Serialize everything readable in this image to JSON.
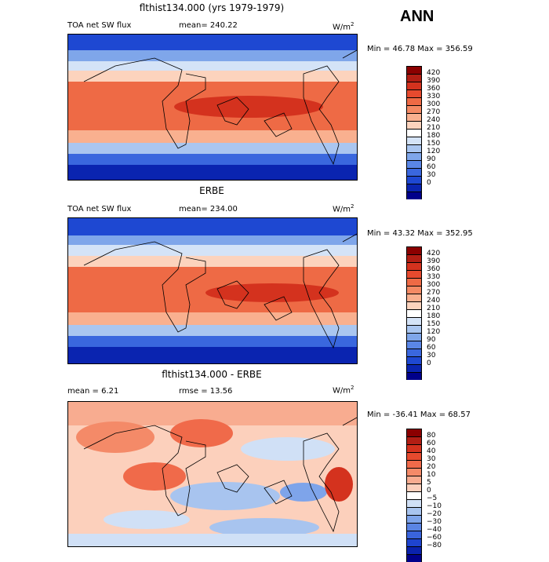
{
  "ann_label": "ANN",
  "panels": [
    {
      "title": "flthist134.000 (yrs 1979-1979)",
      "left_label": "TOA net SW flux",
      "mid_label": "mean= 240.22",
      "units": "W/m",
      "units_exp": "2",
      "minmax": "Min =  46.78 Max = 356.59",
      "colorbar_ticks": [
        "420",
        "390",
        "360",
        "330",
        "300",
        "270",
        "240",
        "210",
        "180",
        "150",
        "120",
        "90",
        "60",
        "30",
        "0"
      ]
    },
    {
      "title": "ERBE",
      "left_label": "TOA net SW flux",
      "mid_label": "mean= 234.00",
      "units": "W/m",
      "units_exp": "2",
      "minmax": "Min =  43.32 Max = 352.95",
      "colorbar_ticks": [
        "420",
        "390",
        "360",
        "330",
        "300",
        "270",
        "240",
        "210",
        "180",
        "150",
        "120",
        "90",
        "60",
        "30",
        "0"
      ]
    },
    {
      "title": "flthist134.000 - ERBE",
      "left_label": "mean =   6.21",
      "mid_label": "rmse =  13.56",
      "units": "W/m",
      "units_exp": "2",
      "minmax": "Min = -36.41 Max =  68.57",
      "colorbar_ticks": [
        "80",
        "60",
        "40",
        "30",
        "20",
        "10",
        "5",
        "0",
        "−5",
        "−10",
        "−20",
        "−30",
        "−40",
        "−60",
        "−80"
      ]
    }
  ],
  "chart_data": [
    {
      "type": "heatmap",
      "title": "flthist134.000 (yrs 1979-1979)",
      "field": "TOA net SW flux",
      "units": "W/m2",
      "mean": 240.22,
      "min": 46.78,
      "max": 356.59,
      "levels": [
        0,
        30,
        60,
        90,
        120,
        150,
        180,
        210,
        240,
        270,
        300,
        330,
        360,
        390,
        420
      ]
    },
    {
      "type": "heatmap",
      "title": "ERBE",
      "field": "TOA net SW flux",
      "units": "W/m2",
      "mean": 234.0,
      "min": 43.32,
      "max": 352.95,
      "levels": [
        0,
        30,
        60,
        90,
        120,
        150,
        180,
        210,
        240,
        270,
        300,
        330,
        360,
        390,
        420
      ]
    },
    {
      "type": "heatmap",
      "title": "flthist134.000 - ERBE",
      "units": "W/m2",
      "mean": 6.21,
      "rmse": 13.56,
      "min": -36.41,
      "max": 68.57,
      "levels": [
        -80,
        -60,
        -40,
        -30,
        -20,
        -10,
        -5,
        0,
        5,
        10,
        20,
        30,
        40,
        60,
        80
      ]
    }
  ],
  "colors": {
    "abs_scale": [
      "#8b0000",
      "#b21e14",
      "#d4321e",
      "#e64a2e",
      "#ee6a45",
      "#f48a64",
      "#f9b08f",
      "#fcd3bd",
      "#ffffff",
      "#d4e3f7",
      "#aac6f0",
      "#7fa6ea",
      "#5a86e6",
      "#3a67de",
      "#1e48d2",
      "#0a24b0",
      "#00008b"
    ],
    "diff_scale": [
      "#8b0000",
      "#b21e14",
      "#d4321e",
      "#e64a2e",
      "#f06a4a",
      "#f48a68",
      "#f8ac90",
      "#fcd0bc",
      "#ffffff",
      "#d0e0f6",
      "#a8c4ef",
      "#7ea4ea",
      "#5a84e4",
      "#3a64dc",
      "#1e44cf",
      "#0a22ad",
      "#00008b"
    ]
  }
}
